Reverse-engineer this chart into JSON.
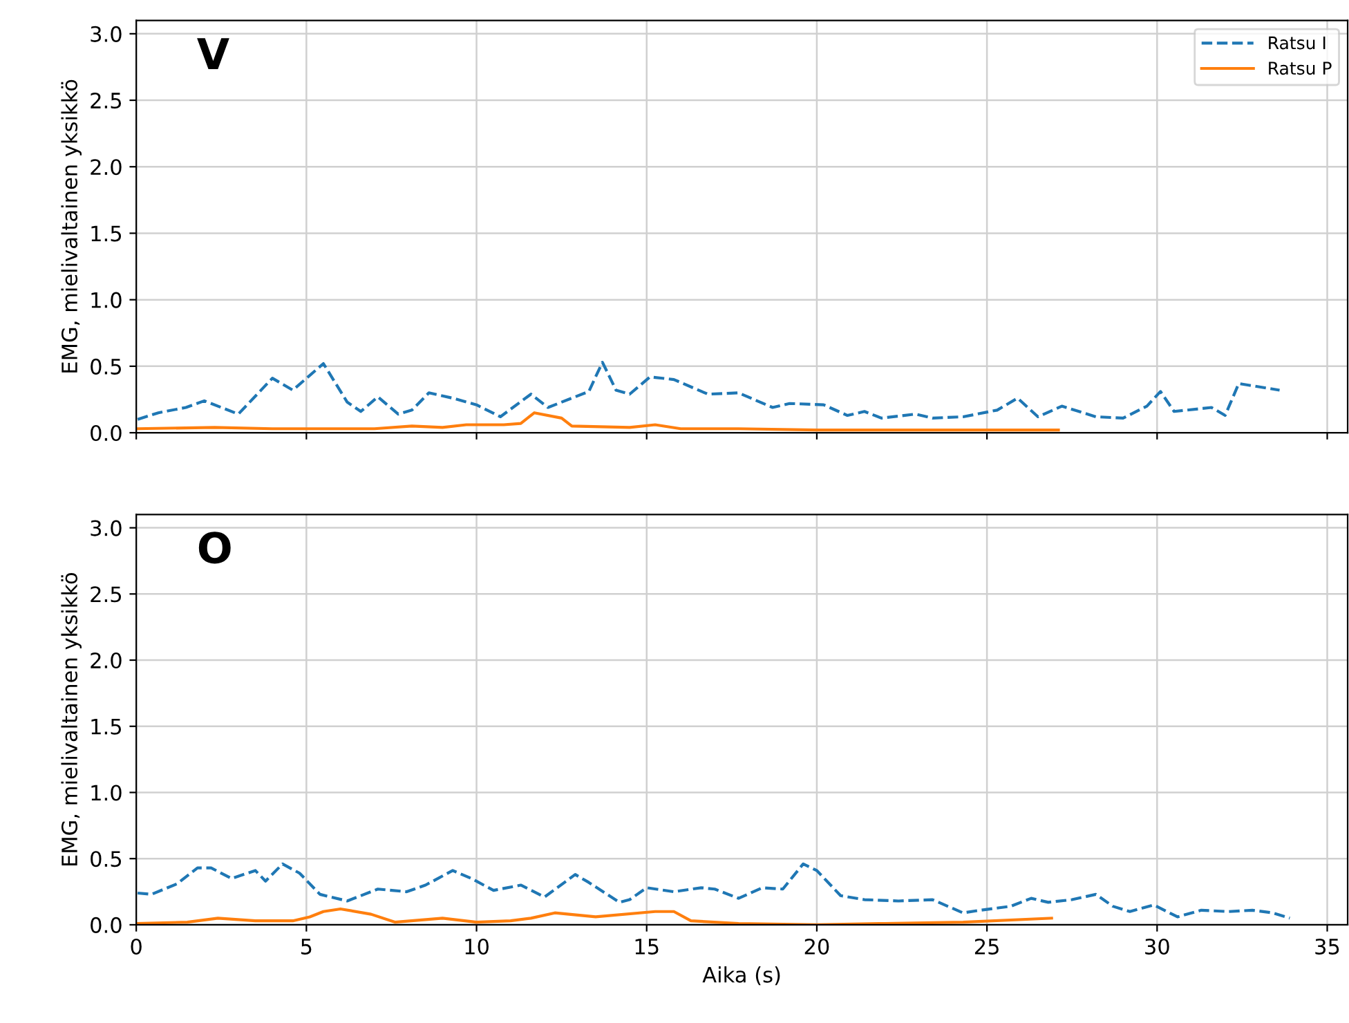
{
  "chart_data": [
    {
      "type": "line",
      "annotations": [
        "V"
      ],
      "ylabel": "EMG, mielivaltainen yksikkö",
      "xlim": [
        0,
        35.6
      ],
      "ylim": [
        0,
        3.1
      ],
      "xticks": [
        0,
        5,
        10,
        15,
        20,
        25,
        30,
        35
      ],
      "yticks": [
        {
          "value": 0,
          "label": "0.0"
        },
        {
          "value": 0.5,
          "label": "0.5"
        },
        {
          "value": 1,
          "label": "1.0"
        },
        {
          "value": 1.5,
          "label": "1.5"
        },
        {
          "value": 2,
          "label": "2.0"
        },
        {
          "value": 2.5,
          "label": "2.5"
        },
        {
          "value": 3,
          "label": "3.0"
        }
      ],
      "tick_labels": "y",
      "grid": true,
      "legend": "top right",
      "marker": "none",
      "series": [
        {
          "name": "Ratsu I",
          "color": "#1f77b4",
          "line_style": "dashed",
          "x": [
            0.04,
            0.65,
            1.46,
            2.0,
            3.0,
            4.0,
            4.6,
            5.5,
            6.2,
            6.6,
            7.1,
            7.7,
            8.1,
            8.6,
            9.3,
            10.0,
            10.7,
            11.6,
            12.1,
            12.9,
            13.3,
            13.7,
            14.1,
            14.5,
            15.1,
            15.8,
            16.8,
            17.7,
            18.7,
            19.2,
            20.2,
            20.9,
            21.4,
            21.9,
            22.9,
            23.4,
            24.3,
            25.3,
            25.9,
            26.5,
            27.2,
            28.2,
            29.0,
            29.7,
            30.1,
            30.5,
            31.6,
            32.0,
            32.4,
            33.6
          ],
          "values": [
            0.1,
            0.15,
            0.19,
            0.24,
            0.14,
            0.41,
            0.32,
            0.52,
            0.23,
            0.16,
            0.27,
            0.14,
            0.17,
            0.3,
            0.26,
            0.21,
            0.12,
            0.29,
            0.19,
            0.27,
            0.31,
            0.53,
            0.32,
            0.29,
            0.42,
            0.4,
            0.29,
            0.3,
            0.19,
            0.22,
            0.21,
            0.13,
            0.16,
            0.11,
            0.14,
            0.11,
            0.12,
            0.17,
            0.26,
            0.12,
            0.2,
            0.12,
            0.11,
            0.2,
            0.31,
            0.16,
            0.19,
            0.13,
            0.37,
            0.32
          ]
        },
        {
          "name": "Ratsu P",
          "color": "#ff7f0e",
          "line_style": "solid",
          "x": [
            0,
            2.3,
            4,
            7,
            8.1,
            9,
            9.7,
            10.8,
            11.3,
            11.7,
            12.5,
            12.8,
            14.5,
            15.25,
            16,
            17.7,
            20,
            27.1
          ],
          "values": [
            0.03,
            0.04,
            0.03,
            0.03,
            0.05,
            0.04,
            0.06,
            0.06,
            0.07,
            0.15,
            0.11,
            0.05,
            0.04,
            0.06,
            0.03,
            0.03,
            0.02,
            0.02
          ]
        }
      ]
    },
    {
      "type": "line",
      "annotations": [
        "O"
      ],
      "xlabel": "Aika (s)",
      "ylabel": "EMG, mielivaltainen yksikkö",
      "xlim": [
        0,
        35.6
      ],
      "ylim": [
        0,
        3.1
      ],
      "xticks": [
        0,
        5,
        10,
        15,
        20,
        25,
        30,
        35
      ],
      "yticks": [
        {
          "value": 0,
          "label": "0.0"
        },
        {
          "value": 0.5,
          "label": "0.5"
        },
        {
          "value": 1,
          "label": "1.0"
        },
        {
          "value": 1.5,
          "label": "1.5"
        },
        {
          "value": 2,
          "label": "2.0"
        },
        {
          "value": 2.5,
          "label": "2.5"
        },
        {
          "value": 3,
          "label": "3.0"
        }
      ],
      "grid": true,
      "marker": "none",
      "series": [
        {
          "color": "#1f77b4",
          "line_style": "dashed",
          "x": [
            0.04,
            0.45,
            1.2,
            1.8,
            2.2,
            2.8,
            3.5,
            3.8,
            4.3,
            4.8,
            5.4,
            6.2,
            7.1,
            7.95,
            8.5,
            9.3,
            9.85,
            10.5,
            11.3,
            12.0,
            12.9,
            13.3,
            14.2,
            14.5,
            15.0,
            15.8,
            16.6,
            17.0,
            17.7,
            18.4,
            19.0,
            19.6,
            20.0,
            20.7,
            21.4,
            22.4,
            23.4,
            24.3,
            24.8,
            25.7,
            26.3,
            26.8,
            27.5,
            28.2,
            28.7,
            29.2,
            29.9,
            30.6,
            31.3,
            32.1,
            32.8,
            33.4,
            33.9
          ],
          "values": [
            0.24,
            0.23,
            0.31,
            0.43,
            0.43,
            0.35,
            0.41,
            0.33,
            0.46,
            0.39,
            0.23,
            0.18,
            0.27,
            0.25,
            0.3,
            0.41,
            0.35,
            0.26,
            0.3,
            0.21,
            0.38,
            0.32,
            0.17,
            0.19,
            0.28,
            0.25,
            0.28,
            0.27,
            0.2,
            0.28,
            0.27,
            0.46,
            0.41,
            0.22,
            0.19,
            0.18,
            0.19,
            0.09,
            0.11,
            0.14,
            0.2,
            0.17,
            0.19,
            0.23,
            0.14,
            0.1,
            0.15,
            0.06,
            0.11,
            0.1,
            0.11,
            0.09,
            0.05
          ]
        },
        {
          "color": "#ff7f0e",
          "line_style": "solid",
          "x": [
            0,
            1.5,
            2.4,
            3.5,
            4.6,
            5.1,
            5.5,
            6.0,
            6.9,
            7.6,
            9.0,
            10.0,
            11.0,
            11.6,
            12.3,
            13.5,
            15.25,
            15.8,
            16.3,
            17.7,
            20,
            22,
            24.3,
            26.9
          ],
          "values": [
            0.01,
            0.02,
            0.05,
            0.03,
            0.03,
            0.06,
            0.1,
            0.12,
            0.08,
            0.02,
            0.05,
            0.02,
            0.03,
            0.05,
            0.09,
            0.06,
            0.1,
            0.1,
            0.03,
            0.01,
            0.0,
            0.01,
            0.02,
            0.05
          ]
        }
      ]
    }
  ]
}
